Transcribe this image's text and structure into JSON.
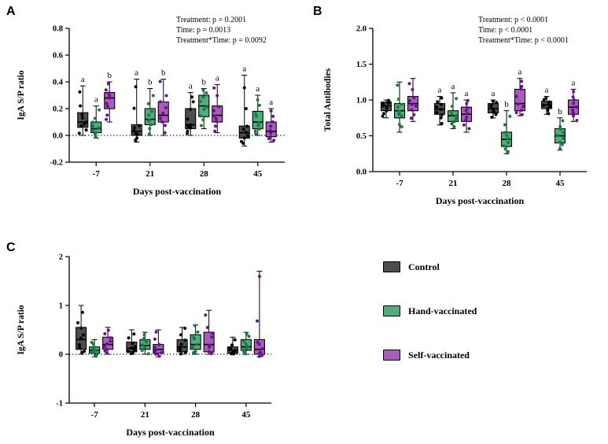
{
  "colors": {
    "control": "#4d4d4d",
    "control_dot": "#000000",
    "hand": "#4fae7c",
    "hand_dot": "#1a7a42",
    "self": "#a85cbc",
    "self_dot": "#6d0f8f"
  },
  "legend": {
    "items": [
      {
        "label": "Control",
        "color": "#4d4d4d"
      },
      {
        "label": "Hand-vaccinated",
        "color": "#4fae7c"
      },
      {
        "label": "Self-vaccinated",
        "color": "#a85cbc"
      }
    ]
  },
  "chart_data": [
    {
      "id": "panelA",
      "panel_label": "A",
      "type": "box",
      "xlabel": "Days post-vaccination",
      "ylabel": "IgA S/P ratio",
      "ylim": [
        -0.2,
        0.8
      ],
      "yticks": [
        {
          "v": -0.2,
          "label": "-0.2"
        },
        {
          "v": 0.0,
          "label": "0.0"
        },
        {
          "v": 0.2,
          "label": "0.2"
        },
        {
          "v": 0.4,
          "label": "0.4"
        },
        {
          "v": 0.6,
          "label": "0.6"
        },
        {
          "v": 0.8,
          "label": "0.8"
        }
      ],
      "categories": [
        "-7",
        "21",
        "28",
        "45"
      ],
      "zero_line": true,
      "annotation": [
        "Treatment: p = 0.2001",
        "Time: p = 0.0013",
        "Treatment*Time: p = 0.0092"
      ],
      "series": [
        {
          "name": "Control",
          "color": "control",
          "boxes": [
            {
              "min": 0.0,
              "q1": 0.06,
              "med": 0.1,
              "q3": 0.17,
              "max": 0.37,
              "letter": "a"
            },
            {
              "min": -0.05,
              "q1": 0.0,
              "med": 0.03,
              "q3": 0.08,
              "max": 0.42,
              "letter": "a"
            },
            {
              "min": 0.0,
              "q1": 0.05,
              "med": 0.08,
              "q3": 0.2,
              "max": 0.32,
              "letter": "a"
            },
            {
              "min": -0.08,
              "q1": -0.02,
              "med": 0.02,
              "q3": 0.07,
              "max": 0.45,
              "letter": "a"
            }
          ]
        },
        {
          "name": "Hand-vaccinated",
          "color": "hand",
          "boxes": [
            {
              "min": -0.02,
              "q1": 0.02,
              "med": 0.05,
              "q3": 0.1,
              "max": 0.22,
              "letter": "a"
            },
            {
              "min": 0.0,
              "q1": 0.08,
              "med": 0.12,
              "q3": 0.2,
              "max": 0.35,
              "letter": "b"
            },
            {
              "min": 0.05,
              "q1": 0.14,
              "med": 0.22,
              "q3": 0.3,
              "max": 0.35,
              "letter": "b"
            },
            {
              "min": 0.0,
              "q1": 0.05,
              "med": 0.1,
              "q3": 0.18,
              "max": 0.3,
              "letter": "a"
            }
          ]
        },
        {
          "name": "Self-vaccinated",
          "color": "self",
          "boxes": [
            {
              "min": 0.1,
              "q1": 0.2,
              "med": 0.28,
              "q3": 0.32,
              "max": 0.4,
              "letter": "b"
            },
            {
              "min": 0.0,
              "q1": 0.1,
              "med": 0.15,
              "q3": 0.25,
              "max": 0.42,
              "letter": "b"
            },
            {
              "min": 0.02,
              "q1": 0.1,
              "med": 0.15,
              "q3": 0.22,
              "max": 0.38,
              "letter": "a"
            },
            {
              "min": -0.05,
              "q1": -0.01,
              "med": 0.03,
              "q3": 0.1,
              "max": 0.2,
              "letter": "a"
            }
          ]
        }
      ]
    },
    {
      "id": "panelB",
      "panel_label": "B",
      "type": "box",
      "xlabel": "Days post-vaccination",
      "ylabel": "Total Antibodies",
      "ylim": [
        0.0,
        2.0
      ],
      "yticks": [
        {
          "v": 0.0,
          "label": "0.0"
        },
        {
          "v": 0.5,
          "label": "0.5"
        },
        {
          "v": 1.0,
          "label": "1.0"
        },
        {
          "v": 1.5,
          "label": "1.5"
        },
        {
          "v": 2.0,
          "label": "2.0"
        }
      ],
      "categories": [
        "-7",
        "21",
        "28",
        "45"
      ],
      "zero_line": false,
      "annotation": [
        "Treatment: p < 0.0001",
        "Time: p < 0.0001",
        "Treatment*Time: p < 0.0001"
      ],
      "series": [
        {
          "name": "Control",
          "color": "control",
          "boxes": [
            {
              "min": 0.75,
              "q1": 0.85,
              "med": 0.92,
              "q3": 0.97,
              "max": 1.0,
              "letter": null
            },
            {
              "min": 0.65,
              "q1": 0.8,
              "med": 0.87,
              "q3": 0.95,
              "max": 1.05,
              "letter": "a"
            },
            {
              "min": 0.75,
              "q1": 0.82,
              "med": 0.88,
              "q3": 0.95,
              "max": 1.0,
              "letter": "a"
            },
            {
              "min": 0.8,
              "q1": 0.88,
              "med": 0.93,
              "q3": 0.98,
              "max": 1.05,
              "letter": "a"
            }
          ]
        },
        {
          "name": "Hand-vaccinated",
          "color": "hand",
          "boxes": [
            {
              "min": 0.55,
              "q1": 0.75,
              "med": 0.85,
              "q3": 0.95,
              "max": 1.25,
              "letter": null
            },
            {
              "min": 0.6,
              "q1": 0.7,
              "med": 0.78,
              "q3": 0.85,
              "max": 1.1,
              "letter": "a"
            },
            {
              "min": 0.25,
              "q1": 0.35,
              "med": 0.45,
              "q3": 0.55,
              "max": 0.85,
              "letter": "b"
            },
            {
              "min": 0.3,
              "q1": 0.4,
              "med": 0.5,
              "q3": 0.6,
              "max": 0.75,
              "letter": "b"
            }
          ]
        },
        {
          "name": "Self-vaccinated",
          "color": "self",
          "boxes": [
            {
              "min": 0.7,
              "q1": 0.85,
              "med": 0.95,
              "q3": 1.05,
              "max": 1.3,
              "letter": null
            },
            {
              "min": 0.55,
              "q1": 0.7,
              "med": 0.8,
              "q3": 0.9,
              "max": 1.0,
              "letter": "a"
            },
            {
              "min": 0.78,
              "q1": 0.85,
              "med": 0.95,
              "q3": 1.15,
              "max": 1.3,
              "letter": "a"
            },
            {
              "min": 0.7,
              "q1": 0.8,
              "med": 0.9,
              "q3": 1.0,
              "max": 1.15,
              "letter": "a"
            }
          ]
        }
      ]
    },
    {
      "id": "panelC",
      "panel_label": "C",
      "type": "box",
      "xlabel": "Days post-vaccination",
      "ylabel": "IgA S/P ratio",
      "ylim": [
        -1,
        2
      ],
      "yticks": [
        {
          "v": -1,
          "label": "-1"
        },
        {
          "v": 0,
          "label": "0"
        },
        {
          "v": 1,
          "label": "1"
        },
        {
          "v": 2,
          "label": "2"
        }
      ],
      "categories": [
        "-7",
        "21",
        "28",
        "45"
      ],
      "zero_line": true,
      "annotation": [],
      "series": [
        {
          "name": "Control",
          "color": "control",
          "boxes": [
            {
              "min": 0.0,
              "q1": 0.1,
              "med": 0.3,
              "q3": 0.55,
              "max": 1.0,
              "letter": null
            },
            {
              "min": 0.0,
              "q1": 0.05,
              "med": 0.12,
              "q3": 0.25,
              "max": 0.5,
              "letter": null
            },
            {
              "min": 0.0,
              "q1": 0.05,
              "med": 0.15,
              "q3": 0.3,
              "max": 0.55,
              "letter": null
            },
            {
              "min": 0.0,
              "q1": 0.02,
              "med": 0.08,
              "q3": 0.15,
              "max": 0.35,
              "letter": null
            }
          ]
        },
        {
          "name": "Hand-vaccinated",
          "color": "hand",
          "boxes": [
            {
              "min": -0.05,
              "q1": 0.02,
              "med": 0.08,
              "q3": 0.15,
              "max": 0.3,
              "letter": null
            },
            {
              "min": 0.0,
              "q1": 0.1,
              "med": 0.18,
              "q3": 0.3,
              "max": 0.45,
              "letter": null
            },
            {
              "min": 0.0,
              "q1": 0.1,
              "med": 0.2,
              "q3": 0.4,
              "max": 0.6,
              "letter": null
            },
            {
              "min": 0.0,
              "q1": 0.08,
              "med": 0.15,
              "q3": 0.3,
              "max": 0.45,
              "letter": null
            }
          ]
        },
        {
          "name": "Self-vaccinated",
          "color": "self",
          "boxes": [
            {
              "min": 0.0,
              "q1": 0.1,
              "med": 0.2,
              "q3": 0.35,
              "max": 0.55,
              "letter": null
            },
            {
              "min": -0.05,
              "q1": 0.02,
              "med": 0.1,
              "q3": 0.2,
              "max": 0.5,
              "letter": null
            },
            {
              "min": 0.0,
              "q1": 0.05,
              "med": 0.2,
              "q3": 0.45,
              "max": 0.9,
              "letter": null
            },
            {
              "min": -0.05,
              "q1": 0.0,
              "med": 0.1,
              "q3": 0.3,
              "max": 1.7,
              "letter": null
            }
          ]
        }
      ]
    }
  ]
}
